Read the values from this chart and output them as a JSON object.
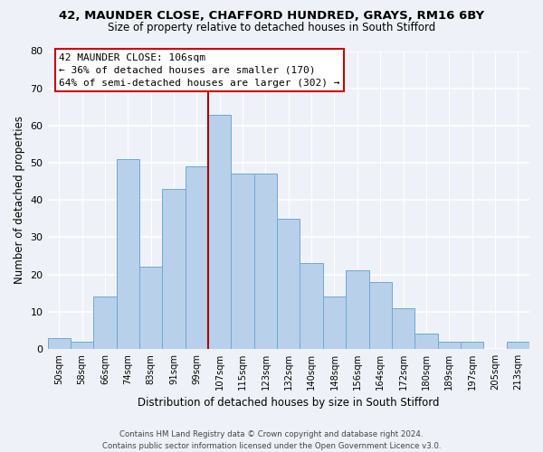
{
  "title1": "42, MAUNDER CLOSE, CHAFFORD HUNDRED, GRAYS, RM16 6BY",
  "title2": "Size of property relative to detached houses in South Stifford",
  "xlabel": "Distribution of detached houses by size in South Stifford",
  "ylabel": "Number of detached properties",
  "footer1": "Contains HM Land Registry data © Crown copyright and database right 2024.",
  "footer2": "Contains public sector information licensed under the Open Government Licence v3.0.",
  "bin_labels": [
    "50sqm",
    "58sqm",
    "66sqm",
    "74sqm",
    "83sqm",
    "91sqm",
    "99sqm",
    "107sqm",
    "115sqm",
    "123sqm",
    "132sqm",
    "140sqm",
    "148sqm",
    "156sqm",
    "164sqm",
    "172sqm",
    "180sqm",
    "189sqm",
    "197sqm",
    "205sqm",
    "213sqm"
  ],
  "bar_heights": [
    3,
    2,
    14,
    51,
    22,
    43,
    49,
    63,
    47,
    47,
    35,
    23,
    14,
    21,
    18,
    11,
    4,
    2,
    2,
    0,
    2
  ],
  "bar_color": "#b8d0ea",
  "bar_edge_color": "#6aaad4",
  "highlight_line_color": "#aa0000",
  "ylim": [
    0,
    80
  ],
  "yticks": [
    0,
    10,
    20,
    30,
    40,
    50,
    60,
    70,
    80
  ],
  "annotation_title": "42 MAUNDER CLOSE: 106sqm",
  "annotation_line1": "← 36% of detached houses are smaller (170)",
  "annotation_line2": "64% of semi-detached houses are larger (302) →",
  "annotation_box_color": "#ffffff",
  "annotation_box_edge": "#cc0000",
  "background_color": "#eef2f8",
  "grid_color": "#ffffff",
  "title1_fontsize": 9.5,
  "title2_fontsize": 8.5
}
